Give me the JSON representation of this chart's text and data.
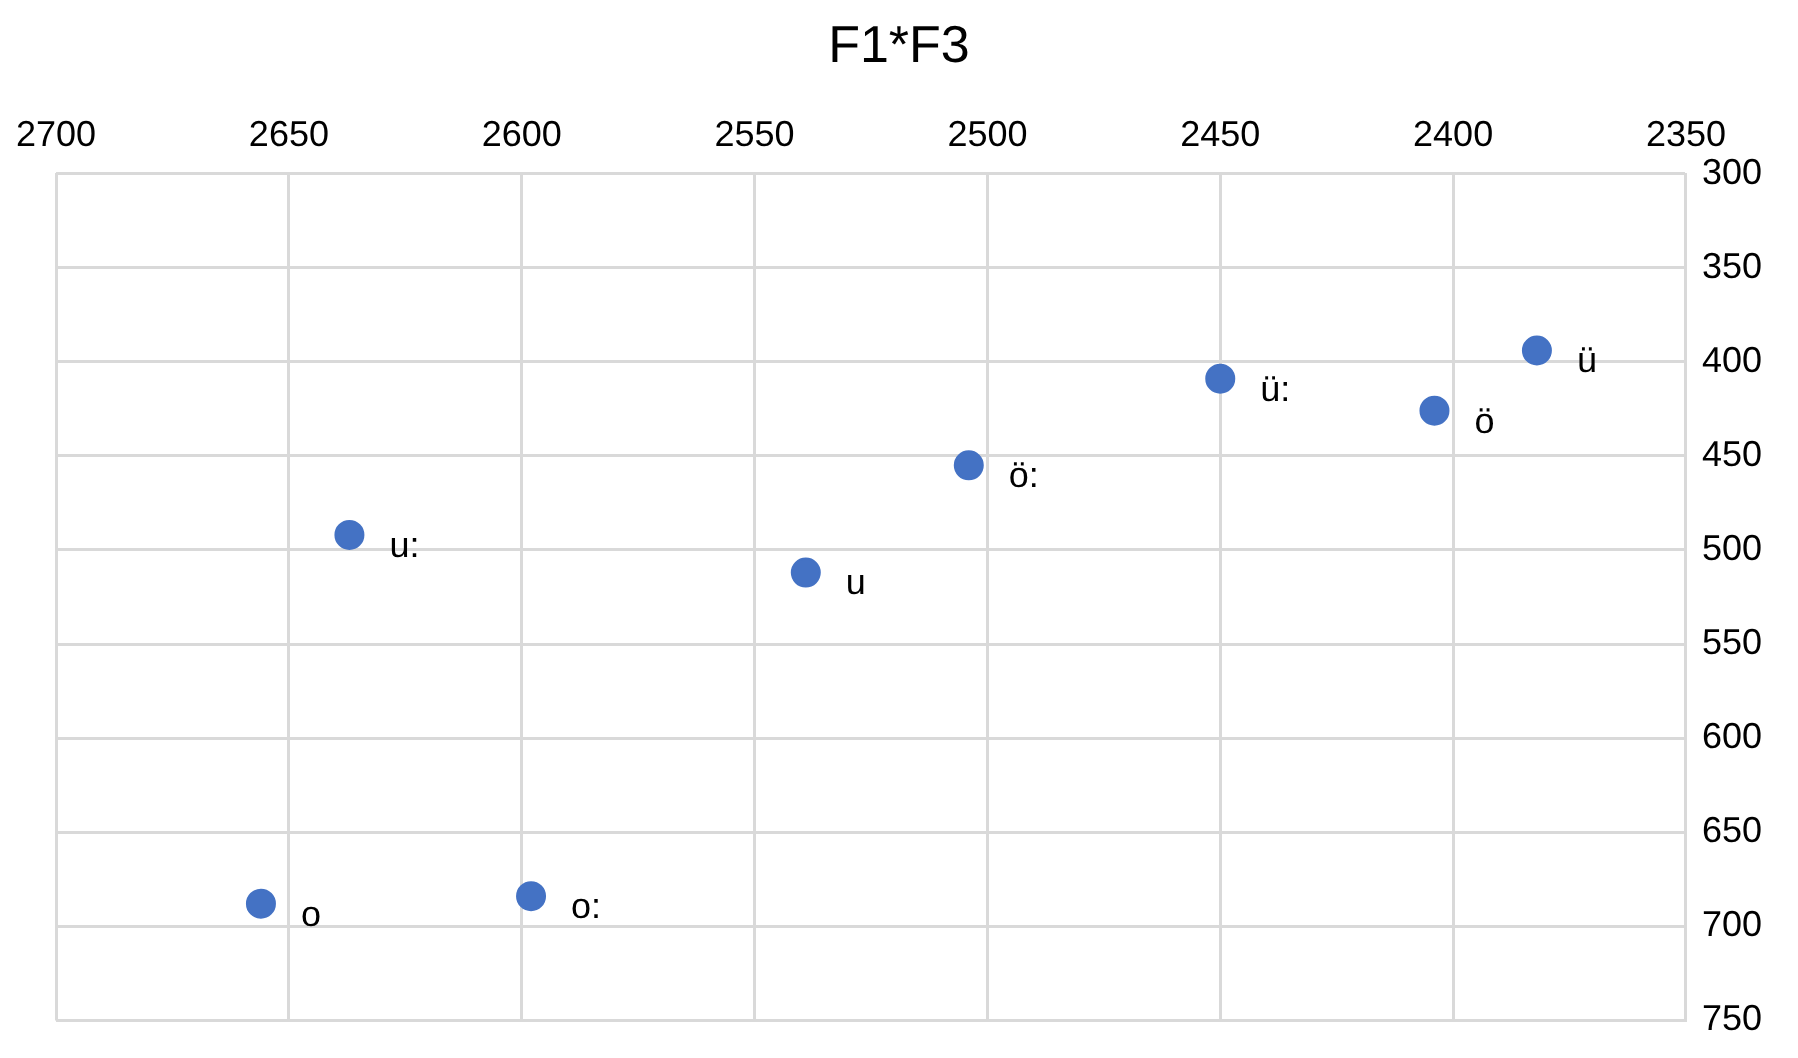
{
  "chart_data": {
    "type": "scatter",
    "title": "F1*F3",
    "x": [
      2656,
      2598,
      2637,
      2539,
      2504,
      2450,
      2404,
      2382
    ],
    "values": [
      688,
      684,
      492,
      512,
      455,
      409,
      426,
      394
    ],
    "color": "#4472c4",
    "marker": "circle",
    "grid": true,
    "xlim": [
      2700,
      2350
    ],
    "xticks": [
      2700,
      2650,
      2600,
      2550,
      2500,
      2450,
      2400,
      2350
    ],
    "ylim": [
      750,
      300
    ],
    "yticks": [
      300,
      350,
      400,
      450,
      500,
      550,
      600,
      650,
      700,
      750
    ],
    "annotations": [
      {
        "text": "o",
        "x": 2656,
        "y": 688
      },
      {
        "text": "o:",
        "x": 2598,
        "y": 684
      },
      {
        "text": "u:",
        "x": 2637,
        "y": 492
      },
      {
        "text": "u",
        "x": 2539,
        "y": 512
      },
      {
        "text": "ö:",
        "x": 2504,
        "y": 455
      },
      {
        "text": "ü:",
        "x": 2450,
        "y": 409
      },
      {
        "text": "ö",
        "x": 2404,
        "y": 426
      },
      {
        "text": "ü",
        "x": 2382,
        "y": 394
      }
    ]
  }
}
